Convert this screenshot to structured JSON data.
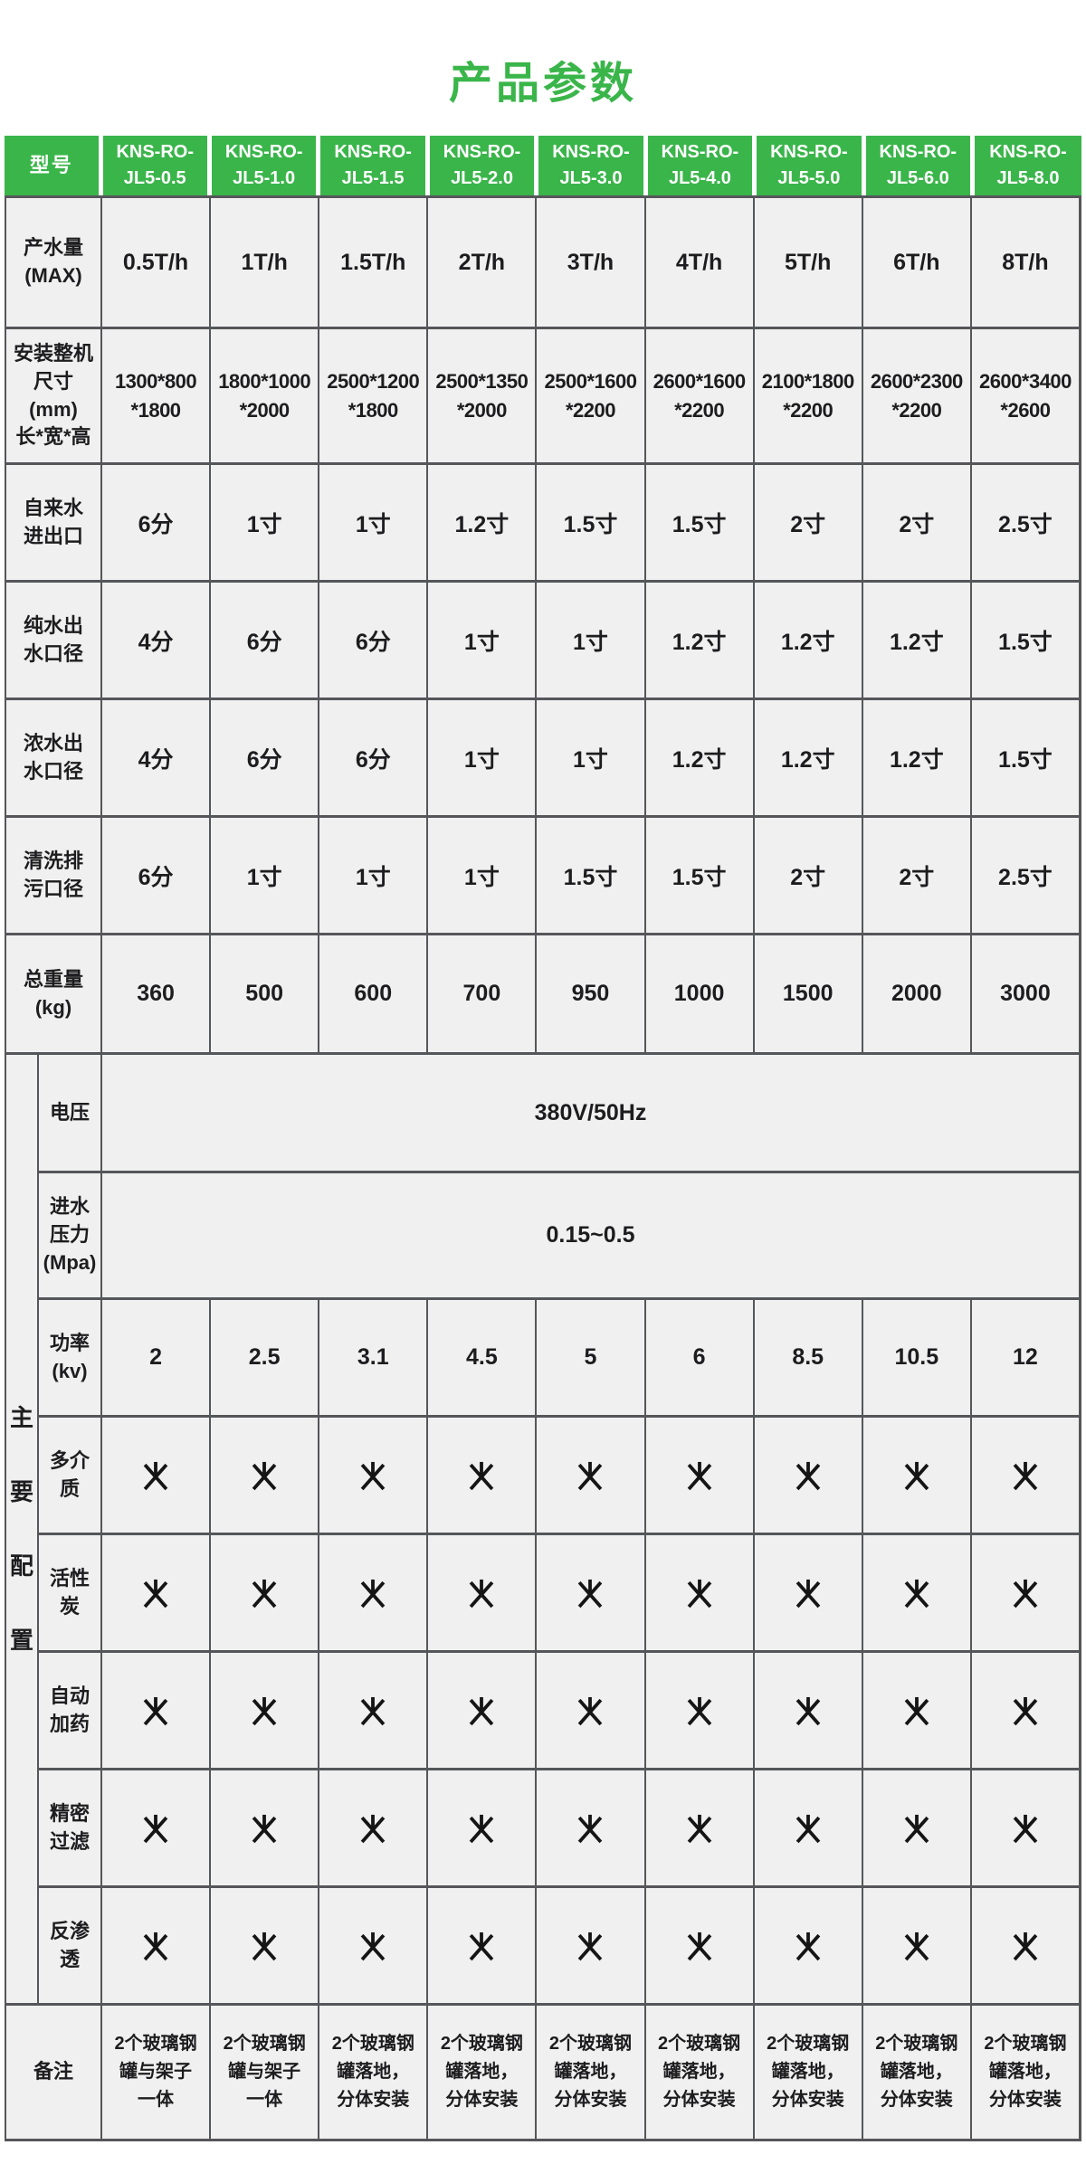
{
  "title": "产品参数",
  "colors": {
    "accent_green": "#3ab54a",
    "cell_background": "#f0f0f0",
    "border": "#55565a",
    "header_text": "#ffffff",
    "body_text": "#1d1d1f"
  },
  "table": {
    "header": {
      "label": "型号",
      "models": [
        "KNS-RO-\nJL5-0.5",
        "KNS-RO-\nJL5-1.0",
        "KNS-RO-\nJL5-1.5",
        "KNS-RO-\nJL5-2.0",
        "KNS-RO-\nJL5-3.0",
        "KNS-RO-\nJL5-4.0",
        "KNS-RO-\nJL5-5.0",
        "KNS-RO-\nJL5-6.0",
        "KNS-RO-\nJL5-8.0"
      ]
    },
    "rows": [
      {
        "label": "产水量\n(MAX)",
        "style": "value",
        "values": [
          "0.5T/h",
          "1T/h",
          "1.5T/h",
          "2T/h",
          "3T/h",
          "4T/h",
          "5T/h",
          "6T/h",
          "8T/h"
        ]
      },
      {
        "label": "安装整机\n尺寸\n(mm)\n长*宽*高",
        "style": "dim",
        "values": [
          "1300*800\n*1800",
          "1800*1000\n*2000",
          "2500*1200\n*1800",
          "2500*1350\n*2000",
          "2500*1600\n*2200",
          "2600*1600\n*2200",
          "2100*1800\n*2200",
          "2600*2300\n*2200",
          "2600*3400\n*2600"
        ]
      },
      {
        "label": "自来水\n进出口",
        "style": "value",
        "values": [
          "6分",
          "1寸",
          "1寸",
          "1.2寸",
          "1.5寸",
          "1.5寸",
          "2寸",
          "2寸",
          "2.5寸"
        ]
      },
      {
        "label": "纯水出\n水口径",
        "style": "value",
        "values": [
          "4分",
          "6分",
          "6分",
          "1寸",
          "1寸",
          "1.2寸",
          "1.2寸",
          "1.2寸",
          "1.5寸"
        ]
      },
      {
        "label": "浓水出\n水口径",
        "style": "value",
        "values": [
          "4分",
          "6分",
          "6分",
          "1寸",
          "1寸",
          "1.2寸",
          "1.2寸",
          "1.2寸",
          "1.5寸"
        ]
      },
      {
        "label": "清洗排\n污口径",
        "style": "value",
        "values": [
          "6分",
          "1寸",
          "1寸",
          "1寸",
          "1.5寸",
          "1.5寸",
          "2寸",
          "2寸",
          "2.5寸"
        ]
      },
      {
        "label": "总重量\n(kg)",
        "style": "value",
        "values": [
          "360",
          "500",
          "600",
          "700",
          "950",
          "1000",
          "1500",
          "2000",
          "3000"
        ]
      }
    ],
    "config_section": {
      "side_label": "主要配置",
      "rows": [
        {
          "label": "电压",
          "span_value": "380V/50Hz"
        },
        {
          "label": "进水\n压力\n(Mpa)",
          "span_value": "0.15~0.5"
        },
        {
          "label": "功率\n(kv)",
          "values": [
            "2",
            "2.5",
            "3.1",
            "4.5",
            "5",
            "6",
            "8.5",
            "10.5",
            "12"
          ]
        },
        {
          "label": "多介\n质",
          "symbol": "asterisk"
        },
        {
          "label": "活性\n炭",
          "symbol": "asterisk"
        },
        {
          "label": "自动\n加药",
          "symbol": "asterisk"
        },
        {
          "label": "精密\n过滤",
          "symbol": "asterisk"
        },
        {
          "label": "反渗\n透",
          "symbol": "asterisk"
        }
      ]
    },
    "footer_row": {
      "label": "备注",
      "values": [
        "2个玻璃钢\n罐与架子\n一体",
        "2个玻璃钢\n罐与架子\n一体",
        "2个玻璃钢\n罐落地，\n分体安装",
        "2个玻璃钢\n罐落地，\n分体安装",
        "2个玻璃钢\n罐落地，\n分体安装",
        "2个玻璃钢\n罐落地，\n分体安装",
        "2个玻璃钢\n罐落地，\n分体安装",
        "2个玻璃钢\n罐落地，\n分体安装",
        "2个玻璃钢\n罐落地，\n分体安装"
      ]
    }
  }
}
